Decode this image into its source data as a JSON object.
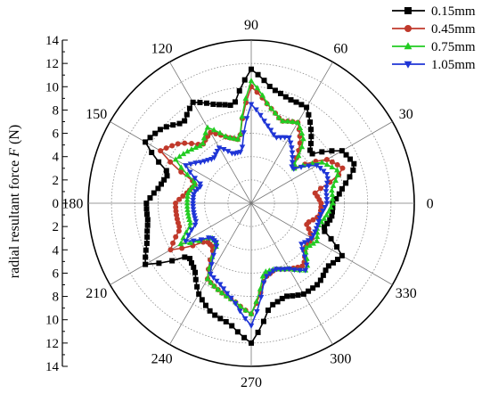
{
  "chart_data": {
    "type": "polar-line",
    "title": "",
    "ylabel_prefix": "radial resultant force ",
    "ylabel_var": "F",
    "ylabel_suffix": " (N)",
    "radial_range": [
      0,
      14
    ],
    "radial_ticks": [
      "14",
      "12",
      "10",
      "8",
      "6",
      "4",
      "2",
      "0",
      "2",
      "4",
      "6",
      "8",
      "10",
      "12",
      "14"
    ],
    "angle_labels": [
      {
        "deg": 0,
        "text": "0"
      },
      {
        "deg": 30,
        "text": "30"
      },
      {
        "deg": 60,
        "text": "60"
      },
      {
        "deg": 90,
        "text": "90"
      },
      {
        "deg": 120,
        "text": "120"
      },
      {
        "deg": 150,
        "text": "150"
      },
      {
        "deg": 180,
        "text": "180"
      },
      {
        "deg": 210,
        "text": "210"
      },
      {
        "deg": 240,
        "text": "240"
      },
      {
        "deg": 270,
        "text": "270"
      },
      {
        "deg": 300,
        "text": "300"
      },
      {
        "deg": 330,
        "text": "330"
      }
    ],
    "grid": true,
    "legend_position": "top-right",
    "series": [
      {
        "name": "0.15mm",
        "color": "#000000",
        "marker": "square",
        "key_angles": [
          0,
          10,
          20,
          30,
          40,
          50,
          60,
          70,
          80,
          90,
          100,
          110,
          120,
          130,
          140,
          150,
          160,
          170,
          180,
          190,
          200,
          210,
          220,
          230,
          240,
          250,
          260,
          270,
          280,
          290,
          300,
          310,
          320,
          330,
          340,
          350,
          360
        ],
        "key_values": [
          7,
          8,
          9.5,
          9,
          6.5,
          8,
          9.5,
          9.5,
          10,
          11.5,
          8.5,
          9,
          10,
          9,
          10,
          10.5,
          7.5,
          8,
          9,
          9,
          9.5,
          10.5,
          7,
          7.5,
          9,
          10,
          10.5,
          12,
          9,
          8.5,
          9,
          9,
          8.5,
          9,
          6.5,
          7,
          7
        ]
      },
      {
        "name": "0.45mm",
        "color": "#c0392b",
        "marker": "circle",
        "key_angles": [
          0,
          10,
          20,
          30,
          40,
          50,
          60,
          70,
          80,
          90,
          100,
          110,
          120,
          130,
          140,
          150,
          160,
          170,
          180,
          190,
          200,
          210,
          220,
          230,
          240,
          250,
          260,
          270,
          280,
          290,
          300,
          310,
          320,
          330,
          340,
          350,
          360
        ],
        "key_values": [
          6,
          5.5,
          8.5,
          7.5,
          4.5,
          6.5,
          8,
          7.5,
          8.5,
          10,
          5.5,
          6,
          7,
          6.5,
          8,
          9,
          5,
          5.5,
          6.5,
          6.5,
          6.5,
          8,
          5,
          5,
          7.5,
          8,
          8.5,
          9.5,
          6.5,
          6,
          6.5,
          7,
          6,
          6,
          5,
          6,
          6
        ]
      },
      {
        "name": "0.75mm",
        "color": "#22cc22",
        "marker": "triangle-up",
        "key_angles": [
          0,
          10,
          20,
          30,
          40,
          50,
          60,
          70,
          80,
          90,
          100,
          110,
          120,
          130,
          140,
          150,
          160,
          170,
          180,
          190,
          200,
          210,
          220,
          230,
          240,
          250,
          260,
          270,
          280,
          290,
          300,
          310,
          320,
          330,
          340,
          350,
          360
        ],
        "key_values": [
          7,
          7,
          8,
          7,
          4.5,
          7,
          8,
          7.5,
          8.5,
          10.5,
          5.5,
          6,
          7.5,
          6.5,
          7,
          7.5,
          5,
          5.5,
          5.5,
          5.5,
          5.5,
          7,
          4.5,
          4.5,
          7.5,
          8,
          8.5,
          9.5,
          6,
          6,
          6.5,
          7.5,
          6,
          6.5,
          6,
          6.5,
          7
        ]
      },
      {
        "name": "1.05mm",
        "color": "#1f35d6",
        "marker": "triangle-down",
        "key_angles": [
          0,
          10,
          20,
          30,
          40,
          50,
          60,
          70,
          80,
          90,
          100,
          110,
          120,
          130,
          140,
          150,
          160,
          170,
          180,
          190,
          200,
          210,
          220,
          230,
          240,
          250,
          260,
          270,
          280,
          290,
          300,
          310,
          320,
          330,
          340,
          350,
          360
        ],
        "key_values": [
          6.5,
          6.5,
          7,
          6.5,
          4.5,
          5.5,
          6.5,
          6,
          7,
          8.5,
          4.5,
          4.5,
          5.5,
          5,
          5.5,
          6.5,
          4.5,
          5,
          5,
          5,
          5,
          6.5,
          4.5,
          4.5,
          7,
          7.5,
          8.5,
          10.5,
          6.5,
          6,
          6.5,
          7.5,
          5.5,
          6,
          6,
          6,
          6.5
        ]
      }
    ]
  }
}
